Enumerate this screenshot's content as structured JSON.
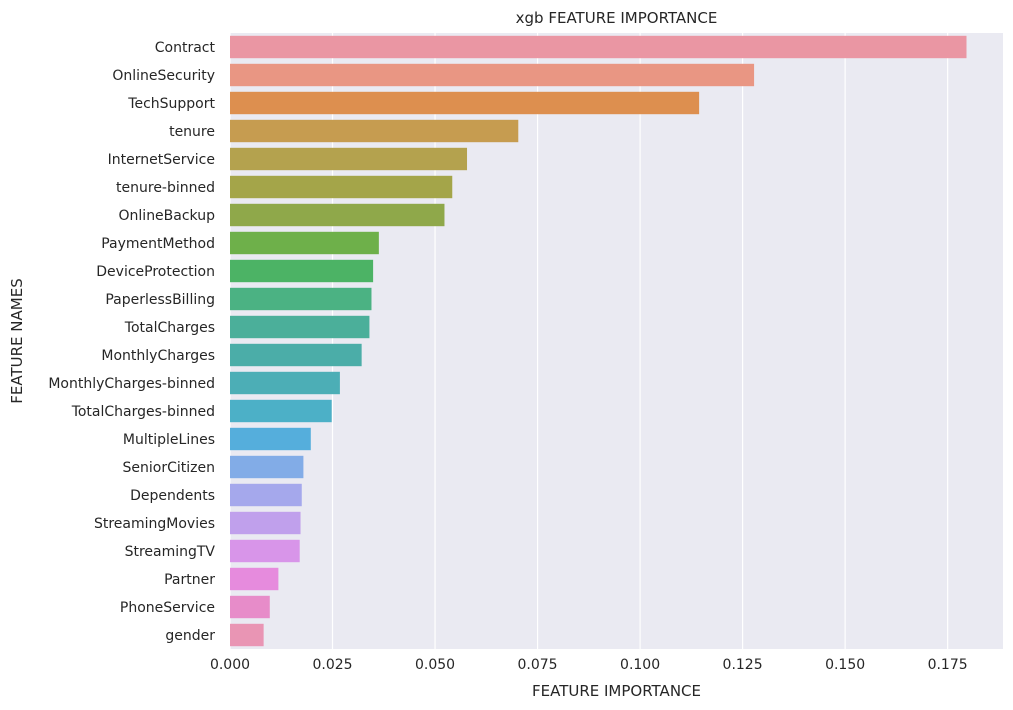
{
  "chart_data": {
    "type": "bar",
    "orientation": "horizontal",
    "title": "xgb FEATURE IMPORTANCE",
    "xlabel": "FEATURE IMPORTANCE",
    "ylabel": "FEATURE NAMES",
    "xlim": [
      0,
      0.1885
    ],
    "xticks": [
      "0.000",
      "0.025",
      "0.050",
      "0.075",
      "0.100",
      "0.125",
      "0.150",
      "0.175"
    ],
    "xtick_values": [
      0,
      0.025,
      0.05,
      0.075,
      0.1,
      0.125,
      0.15,
      0.175
    ],
    "grid": true,
    "categories": [
      "Contract",
      "OnlineSecurity",
      "TechSupport",
      "tenure",
      "InternetService",
      "tenure-binned",
      "OnlineBackup",
      "PaymentMethod",
      "DeviceProtection",
      "PaperlessBilling",
      "TotalCharges",
      "MonthlyCharges",
      "MonthlyCharges-binned",
      "TotalCharges-binned",
      "MultipleLines",
      "SeniorCitizen",
      "Dependents",
      "StreamingMovies",
      "StreamingTV",
      "Partner",
      "PhoneService",
      "gender"
    ],
    "values": [
      0.1796,
      0.1278,
      0.1144,
      0.0703,
      0.0578,
      0.0542,
      0.0523,
      0.0363,
      0.0349,
      0.0345,
      0.034,
      0.0321,
      0.0268,
      0.0248,
      0.0197,
      0.0179,
      0.0175,
      0.0172,
      0.017,
      0.0118,
      0.0097,
      0.0082
    ],
    "colors": [
      "#ea96a3",
      "#e99683",
      "#dd8f4f",
      "#c69c50",
      "#b4a24e",
      "#a4a549",
      "#8fa84a",
      "#6eb04a",
      "#4cb365",
      "#4bb283",
      "#4baf9a",
      "#4bada8",
      "#4caeb6",
      "#4cb0c7",
      "#55aedc",
      "#82ace7",
      "#a5a8ec",
      "#c0a0ec",
      "#d895e9",
      "#e68bdd",
      "#e78cc9",
      "#e995b4"
    ],
    "background_color": "#eaeaf2"
  }
}
